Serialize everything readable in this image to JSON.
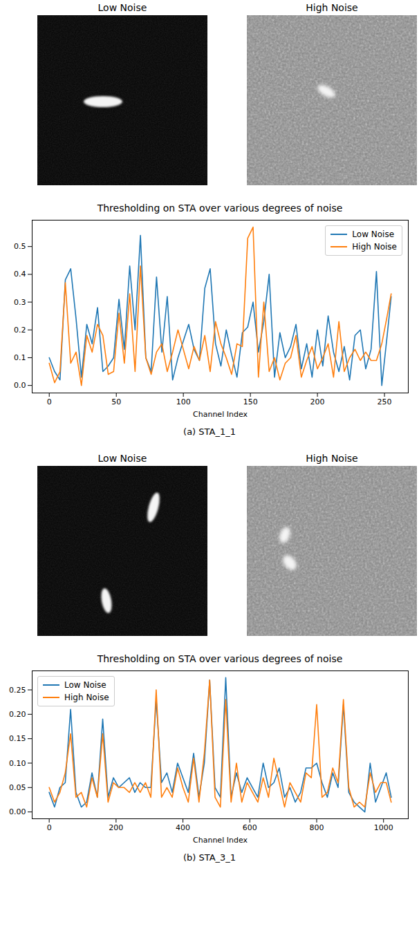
{
  "chart_data": [
    {
      "type": "line",
      "title": "Thresholding on STA over various degrees of noise",
      "annotations": [
        "Low Noise",
        "High Noise"
      ],
      "caption": "(a) STA_1_1",
      "x_label": "Channel Index",
      "x": [
        0,
        4,
        8,
        12,
        16,
        20,
        24,
        28,
        32,
        36,
        40,
        44,
        48,
        52,
        56,
        60,
        64,
        68,
        72,
        76,
        80,
        84,
        88,
        92,
        96,
        100,
        104,
        108,
        112,
        116,
        120,
        124,
        128,
        132,
        136,
        140,
        144,
        148,
        152,
        156,
        160,
        164,
        168,
        172,
        176,
        180,
        184,
        188,
        192,
        196,
        200,
        204,
        208,
        212,
        216,
        220,
        224,
        228,
        232,
        236,
        240,
        244,
        248,
        252,
        255
      ],
      "series": [
        {
          "name": "Low Noise",
          "color": "#1f77b4",
          "values": [
            0.1,
            0.05,
            0.02,
            0.38,
            0.42,
            0.24,
            0.03,
            0.22,
            0.15,
            0.28,
            0.05,
            0.07,
            0.1,
            0.31,
            0.13,
            0.43,
            0.2,
            0.54,
            0.1,
            0.05,
            0.39,
            0.12,
            0.32,
            0.02,
            0.1,
            0.16,
            0.22,
            0.13,
            0.09,
            0.35,
            0.42,
            0.15,
            0.07,
            0.2,
            0.11,
            0.03,
            0.19,
            0.21,
            0.3,
            0.12,
            0.23,
            0.4,
            0.03,
            0.19,
            0.1,
            0.14,
            0.22,
            0.06,
            0.15,
            0.03,
            0.2,
            0.07,
            0.25,
            0.12,
            0.05,
            0.14,
            0.02,
            0.18,
            0.2,
            0.06,
            0.13,
            0.41,
            0.0,
            0.18,
            0.32
          ]
        },
        {
          "name": "High Noise",
          "color": "#ff7f0e",
          "values": [
            0.08,
            0.01,
            0.05,
            0.37,
            0.08,
            0.12,
            0.0,
            0.18,
            0.12,
            0.22,
            0.18,
            0.04,
            0.05,
            0.26,
            0.08,
            0.33,
            0.05,
            0.43,
            0.1,
            0.04,
            0.12,
            0.15,
            0.05,
            0.12,
            0.2,
            0.13,
            0.06,
            0.14,
            0.09,
            0.18,
            0.05,
            0.23,
            0.15,
            0.1,
            0.04,
            0.15,
            0.14,
            0.53,
            0.57,
            0.03,
            0.3,
            0.05,
            0.1,
            0.02,
            0.08,
            0.1,
            0.18,
            0.03,
            0.09,
            0.14,
            0.06,
            0.1,
            0.15,
            0.03,
            0.23,
            0.05,
            0.1,
            0.13,
            0.09,
            0.12,
            0.09,
            0.09,
            0.15,
            0.25,
            0.33
          ]
        }
      ],
      "xlim": [
        -12.75,
        267.75
      ],
      "ylim": [
        -0.027,
        0.595
      ],
      "xticks": [
        0,
        50,
        100,
        150,
        200,
        250
      ],
      "yticks": [
        {
          "value": 0,
          "label": "0.0"
        },
        {
          "value": 0.1,
          "label": "0.1"
        },
        {
          "value": 0.2,
          "label": "0.2"
        },
        {
          "value": 0.3,
          "label": "0.3"
        },
        {
          "value": 0.4,
          "label": "0.4"
        },
        {
          "value": 0.5,
          "label": "0.5"
        }
      ],
      "legend": "upper right"
    },
    {
      "type": "line",
      "title": "Thresholding on STA over various degrees of noise",
      "annotations": [
        "Low Noise",
        "High Noise"
      ],
      "caption": "(b) STA_3_1",
      "x_label": "Channel Index",
      "x": [
        0,
        16,
        32,
        48,
        64,
        80,
        96,
        112,
        128,
        144,
        160,
        176,
        192,
        208,
        224,
        240,
        256,
        272,
        288,
        304,
        320,
        336,
        352,
        368,
        384,
        400,
        416,
        432,
        448,
        464,
        480,
        496,
        512,
        528,
        544,
        560,
        576,
        592,
        608,
        624,
        640,
        656,
        672,
        688,
        704,
        720,
        736,
        752,
        768,
        784,
        800,
        816,
        832,
        848,
        864,
        880,
        896,
        912,
        928,
        944,
        960,
        976,
        992,
        1008,
        1023
      ],
      "series": [
        {
          "name": "Low Noise",
          "color": "#1f77b4",
          "values": [
            0.04,
            0.01,
            0.05,
            0.06,
            0.21,
            0.04,
            0.01,
            0.02,
            0.08,
            0.03,
            0.19,
            0.03,
            0.07,
            0.05,
            0.06,
            0.07,
            0.04,
            0.06,
            0.05,
            0.05,
            0.23,
            0.06,
            0.08,
            0.04,
            0.1,
            0.07,
            0.04,
            0.12,
            0.03,
            0.1,
            0.27,
            0.05,
            0.03,
            0.275,
            0.03,
            0.08,
            0.04,
            0.07,
            0.05,
            0.03,
            0.1,
            0.05,
            0.06,
            0.09,
            0.03,
            0.05,
            0.02,
            0.04,
            0.09,
            0.09,
            0.1,
            0.06,
            0.03,
            0.08,
            0.05,
            0.22,
            0.04,
            0.02,
            0.01,
            0.0,
            0.1,
            0.02,
            0.05,
            0.08,
            0.03
          ]
        },
        {
          "name": "High Noise",
          "color": "#ff7f0e",
          "values": [
            0.05,
            0.02,
            0.04,
            0.08,
            0.16,
            0.03,
            0.04,
            0.01,
            0.07,
            0.03,
            0.16,
            0.02,
            0.06,
            0.05,
            0.05,
            0.04,
            0.06,
            0.04,
            0.06,
            0.03,
            0.25,
            0.03,
            0.05,
            0.03,
            0.09,
            0.05,
            0.02,
            0.11,
            0.02,
            0.12,
            0.27,
            0.03,
            0.01,
            0.23,
            0.02,
            0.1,
            0.02,
            0.06,
            0.04,
            0.02,
            0.07,
            0.03,
            0.11,
            0.06,
            0.01,
            0.06,
            0.04,
            0.02,
            0.08,
            0.07,
            0.22,
            0.03,
            0.04,
            0.09,
            0.06,
            0.23,
            0.05,
            0.01,
            0.02,
            0.01,
            0.08,
            0.04,
            0.06,
            0.06,
            0.02
          ]
        }
      ],
      "xlim": [
        -51,
        1074
      ],
      "ylim": [
        -0.014,
        0.289
      ],
      "xticks": [
        0,
        200,
        400,
        600,
        800,
        1000
      ],
      "yticks": [
        {
          "value": 0,
          "label": "0.00"
        },
        {
          "value": 0.05,
          "label": "0.05"
        },
        {
          "value": 0.1,
          "label": "0.10"
        },
        {
          "value": 0.15,
          "label": "0.15"
        },
        {
          "value": 0.2,
          "label": "0.20"
        },
        {
          "value": 0.25,
          "label": "0.25"
        }
      ],
      "legend": "upper left"
    }
  ]
}
